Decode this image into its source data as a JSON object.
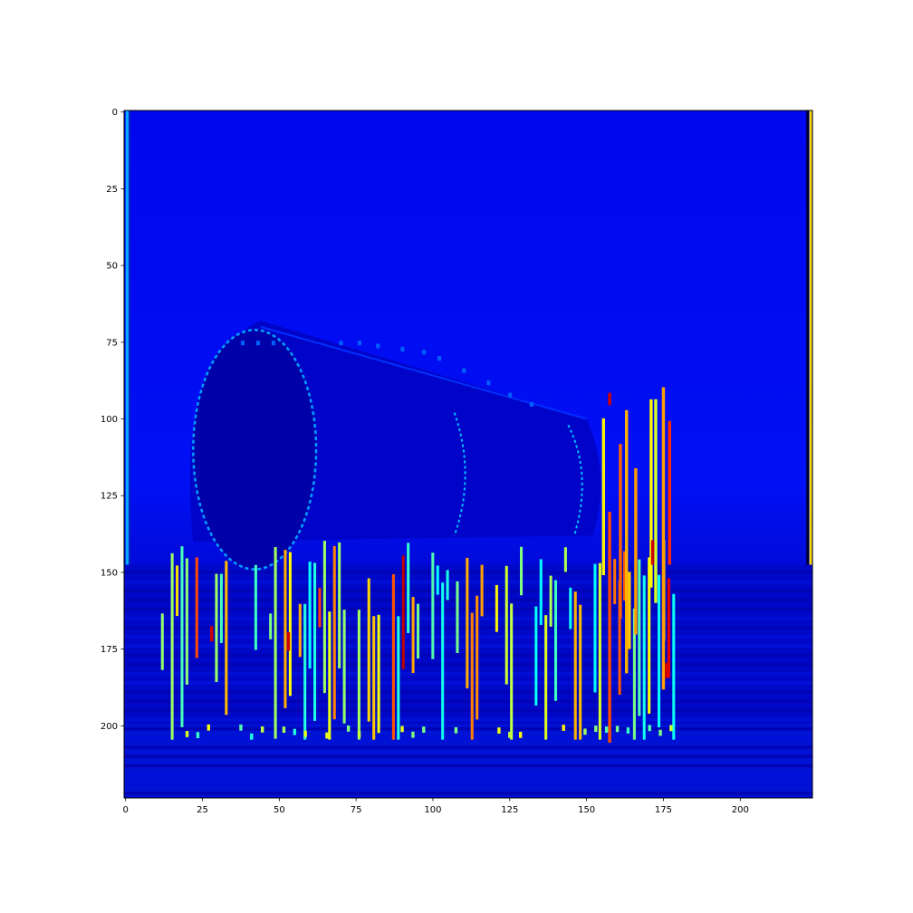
{
  "chart_data": {
    "type": "heatmap",
    "title": "",
    "xlabel": "",
    "ylabel": "",
    "image_shape": [
      224,
      224
    ],
    "xlim": [
      -0.5,
      223.5
    ],
    "ylim": [
      223.5,
      -0.5
    ],
    "x_ticks": [
      0,
      25,
      50,
      75,
      100,
      125,
      150,
      175,
      200
    ],
    "y_ticks": [
      0,
      25,
      50,
      75,
      100,
      125,
      150,
      175,
      200
    ],
    "x_tick_labels": [
      "0",
      "25",
      "50",
      "75",
      "100",
      "125",
      "150",
      "175",
      "200"
    ],
    "y_tick_labels": [
      "0",
      "25",
      "50",
      "75",
      "100",
      "125",
      "150",
      "175",
      "200"
    ],
    "colormap": "jet",
    "colorbar": false,
    "grid": false,
    "depicts": "edge-response activation map of a steam locomotive",
    "colors": {
      "background_low": "#0000e8",
      "sky": "#0008f0",
      "dark_band": "#00009a",
      "ground": "#0010d8",
      "edge_mid": "#00c8ff",
      "edge_high": "#ffe000",
      "edge_peak": "#e00000"
    }
  }
}
